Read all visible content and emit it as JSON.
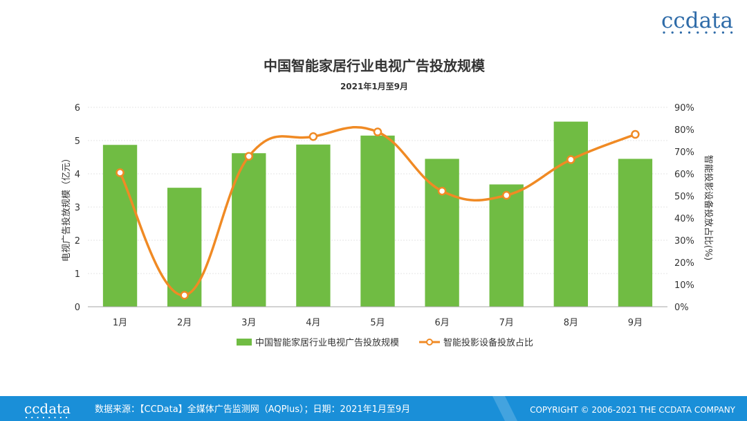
{
  "brand": {
    "logo": "ccdata"
  },
  "chart_data": {
    "type": "bar",
    "title": "中国智能家居行业电视广告投放规模",
    "subtitle": "2021年1月至9月",
    "categories": [
      "1月",
      "2月",
      "3月",
      "4月",
      "5月",
      "6月",
      "7月",
      "8月",
      "9月"
    ],
    "ylabel": "电视广告投放规模（亿元）",
    "y2label": "智能投影设备投放占比(%)",
    "ylim": [
      0,
      6
    ],
    "y2lim": [
      0,
      90
    ],
    "yticks": [
      "0",
      "1",
      "2",
      "3",
      "4",
      "5",
      "6"
    ],
    "y2ticks": [
      "0%",
      "10%",
      "20%",
      "30%",
      "40%",
      "50%",
      "60%",
      "70%",
      "80%",
      "90%"
    ],
    "grid": true,
    "legend": "bottom",
    "series": [
      {
        "name": "中国智能家居行业电视广告投放规模",
        "type": "bar",
        "axis": "left",
        "color": "#70BC43",
        "values": [
          4.87,
          3.58,
          4.62,
          4.88,
          5.15,
          4.45,
          3.68,
          5.57,
          4.45
        ]
      },
      {
        "name": "智能投影设备投放占比",
        "type": "line",
        "axis": "right",
        "smooth": true,
        "color": "#F08A24",
        "values": [
          60.5,
          5.2,
          67.9,
          76.8,
          78.9,
          52.2,
          50.3,
          66.4,
          77.8
        ]
      }
    ]
  },
  "footer": {
    "logo": "ccdata",
    "source": "数据来源：【CCData】全媒体广告监测网（AQPlus）；日期：2021年1月至9月",
    "copyright": "COPYRIGHT © 2006-2021 THE CCDATA COMPANY",
    "color": "#1A8FD8"
  }
}
